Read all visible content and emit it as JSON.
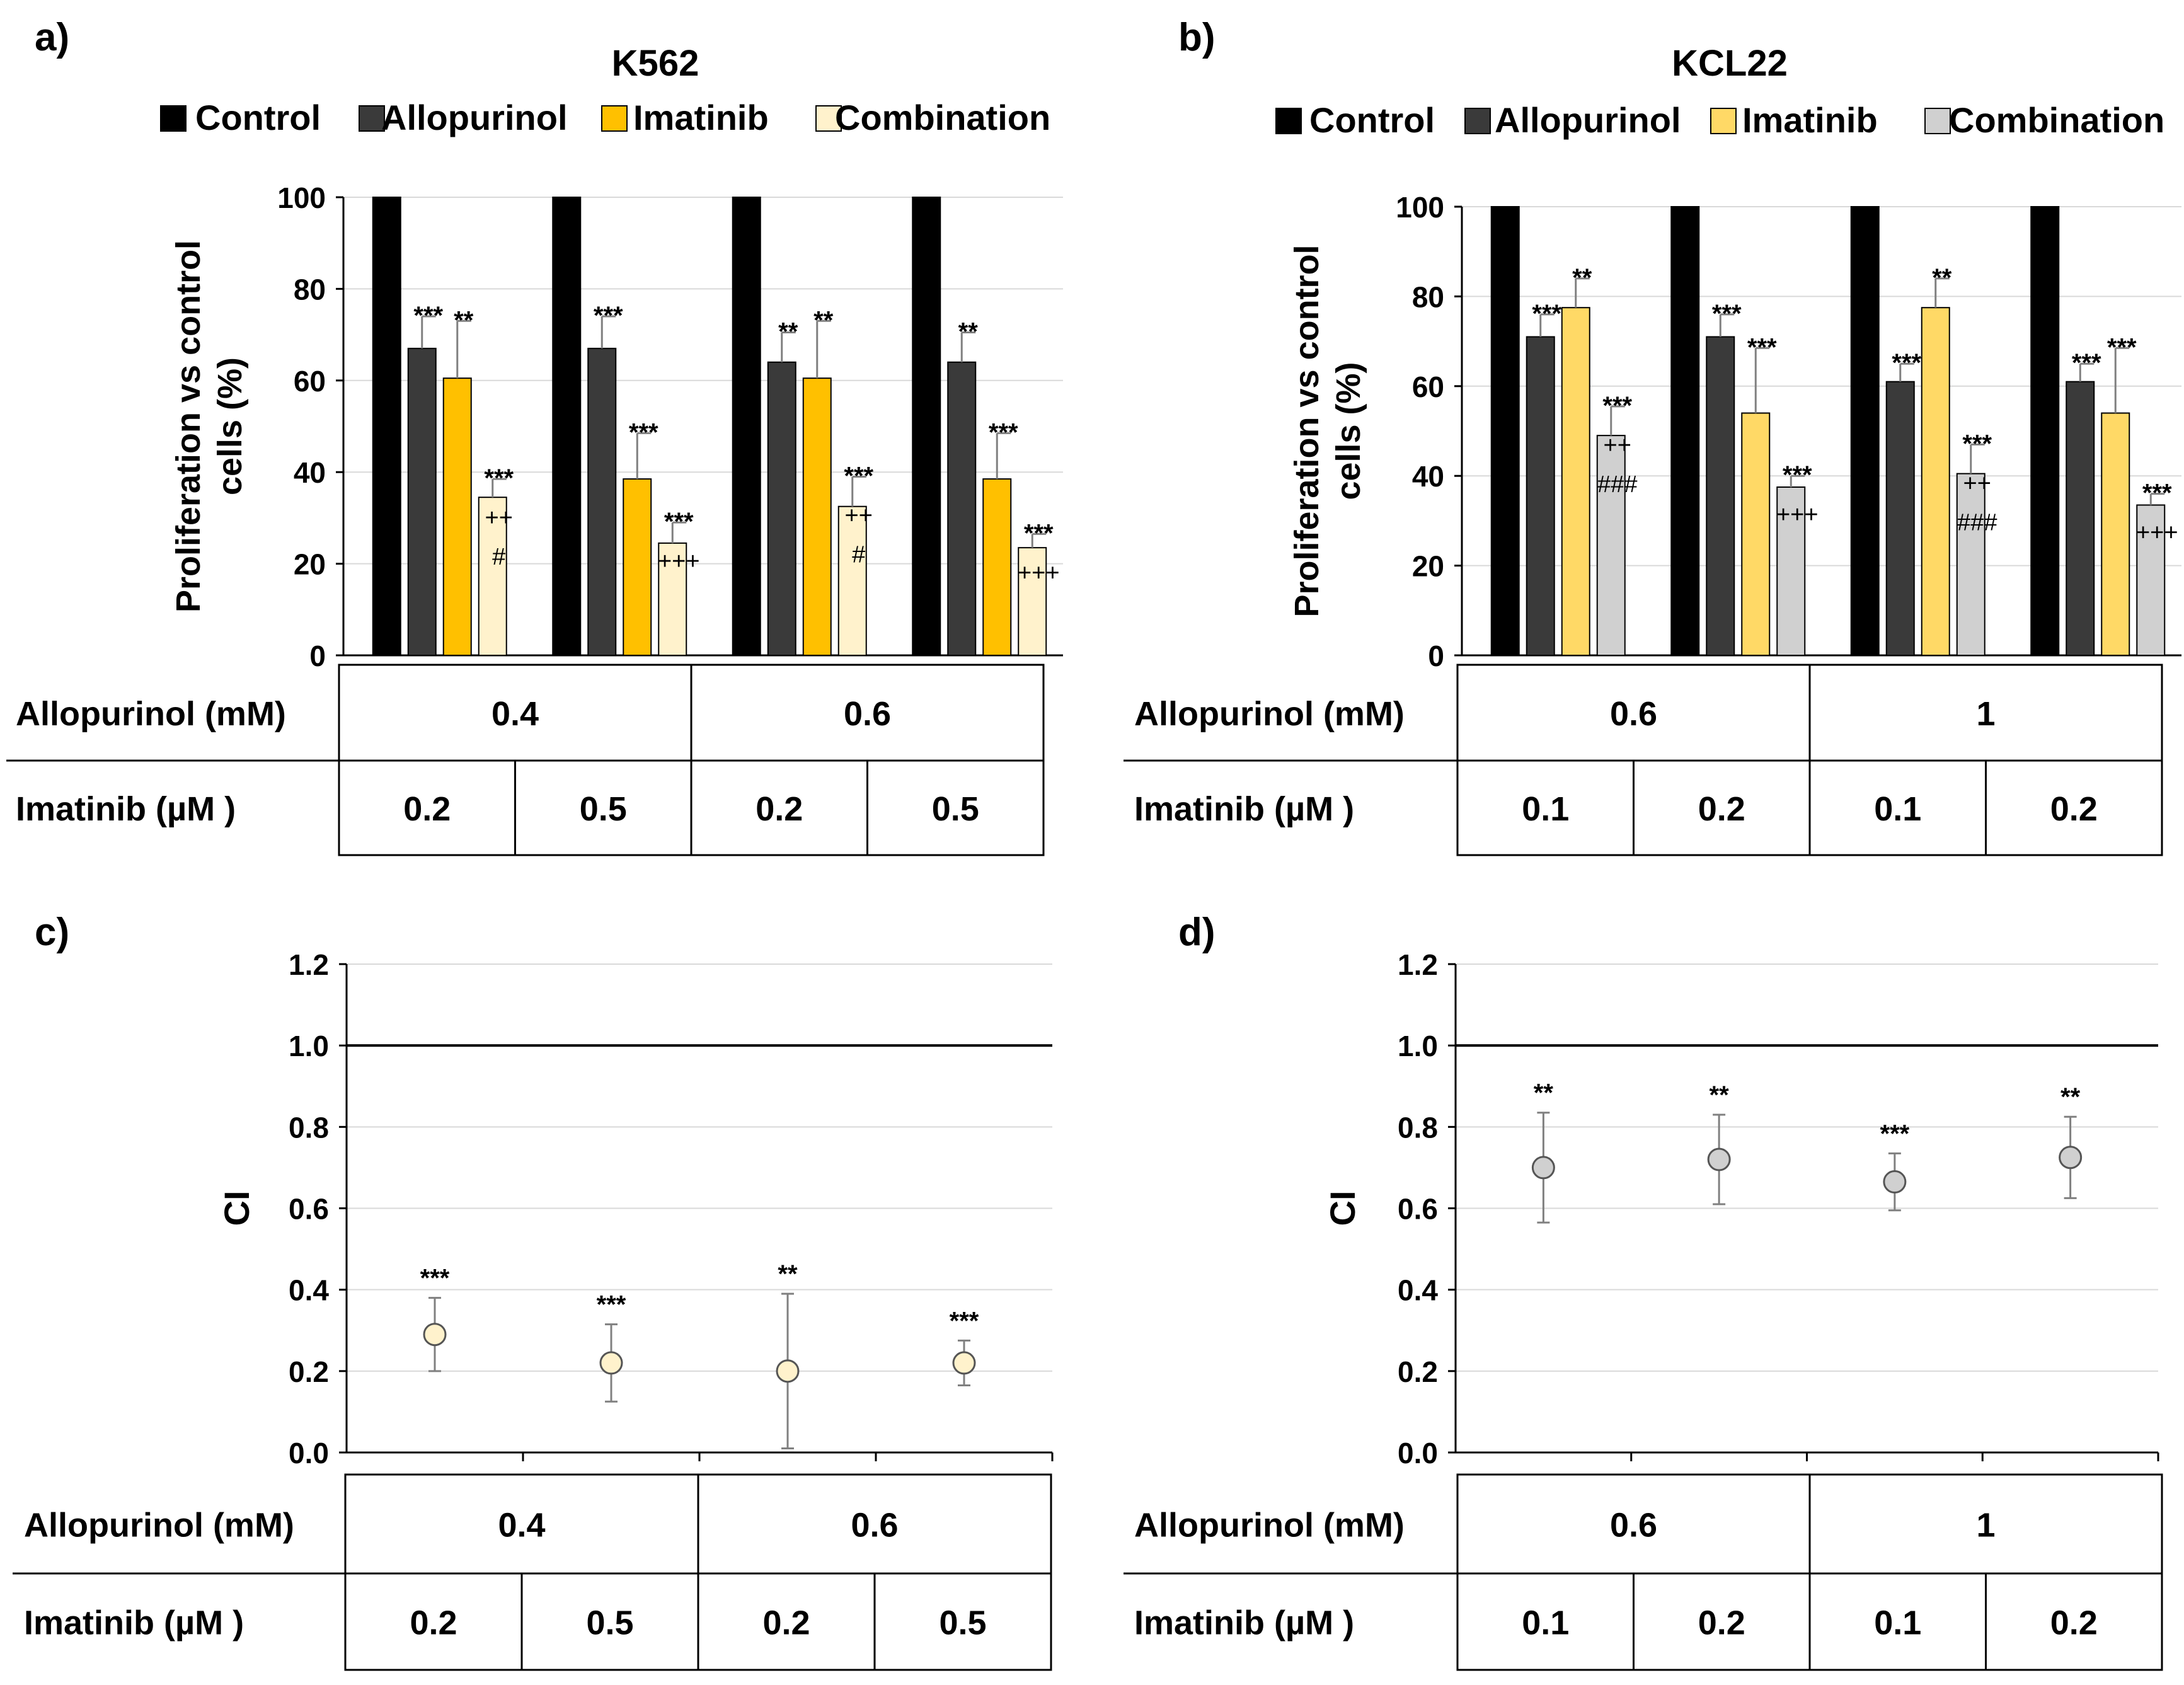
{
  "colors": {
    "control": "#000000",
    "allopurinol": "#3a3a3a",
    "imatinib_a": "#ffc000",
    "combination_a": "#fff2cc",
    "imatinib_b": "#ffd966",
    "combination_b": "#d0d0d0",
    "ci_marker_c": "#fff2cc",
    "ci_marker_d": "#d0d0d0"
  },
  "chart_data": [
    {
      "id": "a",
      "panel_label": "a)",
      "type": "bar",
      "title": "K562",
      "ylabel": "Proliferation vs control cells (%)",
      "ylabel_lines": [
        "Proliferation vs control",
        "cells (%)"
      ],
      "ylim": [
        0,
        100
      ],
      "yticks": [
        0,
        20,
        40,
        60,
        80,
        100
      ],
      "legend_position": "top",
      "legend": [
        "Control",
        "Allopurinol",
        "Imatinib",
        "Combination"
      ],
      "series": [
        {
          "name": "Control",
          "values": [
            100,
            100,
            100,
            100
          ],
          "errors": [
            0,
            0,
            0,
            0
          ],
          "annotations": [
            "",
            "",
            "",
            ""
          ]
        },
        {
          "name": "Allopurinol",
          "values": [
            67,
            67,
            64,
            64
          ],
          "errors": [
            7,
            7,
            6.5,
            6.5
          ],
          "annotations": [
            "***",
            "***",
            "**",
            "**"
          ]
        },
        {
          "name": "Imatinib",
          "values": [
            60.5,
            38.5,
            60.5,
            38.5
          ],
          "errors": [
            12.5,
            10,
            12.5,
            10
          ],
          "annotations": [
            "**",
            "***",
            "**",
            "***"
          ]
        },
        {
          "name": "Combination",
          "values": [
            34.5,
            24.5,
            32.5,
            23.5
          ],
          "errors": [
            4,
            4.5,
            6.5,
            3
          ],
          "annotations": [
            "***\n++\n#",
            "***\n+++",
            "***\n++\n#",
            "***\n+++"
          ]
        }
      ],
      "table": {
        "row1_label": "Allopurinol (mM)",
        "row1_values": [
          "0.4",
          "0.6"
        ],
        "row2_label": "Imatinib (µM )",
        "row2_values": [
          "0.2",
          "0.5",
          "0.2",
          "0.5"
        ]
      }
    },
    {
      "id": "b",
      "panel_label": "b)",
      "type": "bar",
      "title": "KCL22",
      "ylabel": "Proliferation vs control cells (%)",
      "ylabel_lines": [
        "Proliferation vs control",
        "cells (%)"
      ],
      "ylim": [
        0,
        100
      ],
      "yticks": [
        0,
        20,
        40,
        60,
        80,
        100
      ],
      "legend_position": "top",
      "legend": [
        "Control",
        "Allopurinol",
        "Imatinib",
        "Combination"
      ],
      "series": [
        {
          "name": "Control",
          "values": [
            100,
            100,
            100,
            100
          ],
          "errors": [
            0,
            0,
            0,
            0
          ],
          "annotations": [
            "",
            "",
            "",
            ""
          ]
        },
        {
          "name": "Allopurinol",
          "values": [
            71,
            71,
            61,
            61
          ],
          "errors": [
            5,
            5,
            4,
            4
          ],
          "annotations": [
            "***",
            "***",
            "***",
            "***"
          ]
        },
        {
          "name": "Imatinib",
          "values": [
            77.5,
            54,
            77.5,
            54
          ],
          "errors": [
            6.5,
            14.5,
            6.5,
            14.5
          ],
          "annotations": [
            "**",
            "***",
            "**",
            "***"
          ]
        },
        {
          "name": "Combination",
          "values": [
            49,
            37.5,
            40.5,
            33.5
          ],
          "errors": [
            6.5,
            2.5,
            6.5,
            2.5
          ],
          "annotations": [
            "***\n++\n###",
            "***\n+++",
            "***\n++\n###",
            "***\n+++"
          ]
        }
      ],
      "table": {
        "row1_label": "Allopurinol (mM)",
        "row1_values": [
          "0.6",
          "1"
        ],
        "row2_label": "Imatinib (µM )",
        "row2_values": [
          "0.1",
          "0.2",
          "0.1",
          "0.2"
        ]
      }
    },
    {
      "id": "c",
      "panel_label": "c)",
      "type": "scatter",
      "ylabel": "CI",
      "ylim": [
        0,
        1.2
      ],
      "yticks": [
        "0.0",
        "0.2",
        "0.4",
        "0.6",
        "0.8",
        "1.0",
        "1.2"
      ],
      "reference_line": 1.0,
      "points": [
        {
          "y": 0.29,
          "err": 0.09,
          "annotation": "***"
        },
        {
          "y": 0.22,
          "err": 0.095,
          "annotation": "***"
        },
        {
          "y": 0.2,
          "err": 0.19,
          "annotation": "**"
        },
        {
          "y": 0.22,
          "err": 0.055,
          "annotation": "***"
        }
      ],
      "table": {
        "row1_label": "Allopurinol (mM)",
        "row1_values": [
          "0.4",
          "0.6"
        ],
        "row2_label": "Imatinib (µM )",
        "row2_values": [
          "0.2",
          "0.5",
          "0.2",
          "0.5"
        ]
      }
    },
    {
      "id": "d",
      "panel_label": "d)",
      "type": "scatter",
      "ylabel": "CI",
      "ylim": [
        0,
        1.2
      ],
      "yticks": [
        "0.0",
        "0.2",
        "0.4",
        "0.6",
        "0.8",
        "1.0",
        "1.2"
      ],
      "reference_line": 1.0,
      "points": [
        {
          "y": 0.7,
          "err": 0.135,
          "annotation": "**"
        },
        {
          "y": 0.72,
          "err": 0.11,
          "annotation": "**"
        },
        {
          "y": 0.665,
          "err": 0.07,
          "annotation": "***"
        },
        {
          "y": 0.725,
          "err": 0.1,
          "annotation": "**"
        }
      ],
      "table": {
        "row1_label": "Allopurinol (mM)",
        "row1_values": [
          "0.6",
          "1"
        ],
        "row2_label": "Imatinib (µM )",
        "row2_values": [
          "0.1",
          "0.2",
          "0.1",
          "0.2"
        ]
      }
    }
  ]
}
